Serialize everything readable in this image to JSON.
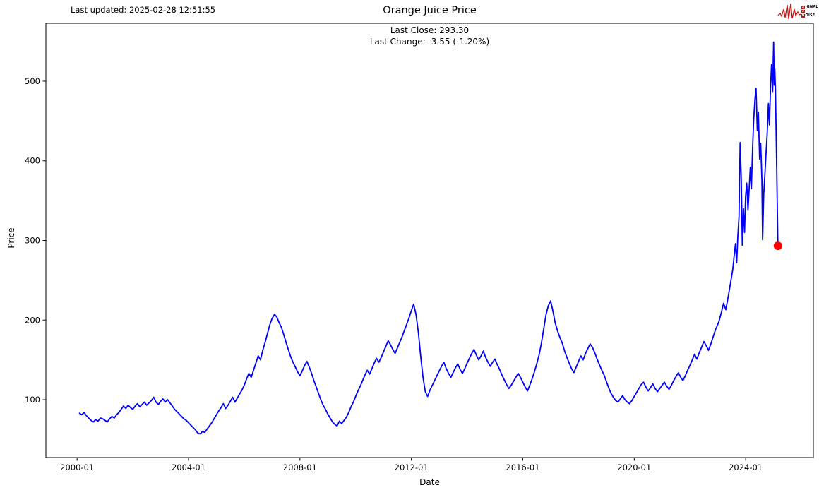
{
  "header": {
    "last_updated": "Last updated: 2025-02-28 12:51:55",
    "logo": {
      "word1_first": "S",
      "word1_rest": "IGNAL",
      "word2_first": "2",
      "word3_first": "N",
      "word3_rest": "OISE",
      "accent_color": "#cc1111"
    }
  },
  "chart_data": {
    "type": "line",
    "title": "Orange Juice Price",
    "xlabel": "Date",
    "ylabel": "Price",
    "annotations": {
      "close_line": "Last Close: 293.30",
      "change_line": "Last Change: -3.55 (-1.20%)"
    },
    "last_close": 293.3,
    "last_change": -3.55,
    "last_change_pct": "-1.20%",
    "line_color": "#0000ff",
    "marker_color": "#ff0000",
    "axis_color": "#000000",
    "grid": false,
    "legend": false,
    "x_ticks": [
      "2000-01",
      "2004-01",
      "2008-01",
      "2012-01",
      "2016-01",
      "2020-01",
      "2024-01"
    ],
    "y_ticks": [
      100,
      200,
      300,
      400,
      500
    ],
    "xlim_years": [
      1998.88,
      2026.43
    ],
    "ylim": [
      27.3,
      572.7
    ],
    "monthly": {
      "2000": [
        83,
        81,
        84,
        80,
        77,
        74,
        72,
        75,
        73,
        77,
        76
      ],
      "2001": [
        74,
        72,
        76,
        79,
        77,
        81,
        84,
        88,
        92,
        89,
        93,
        90
      ],
      "2002": [
        88,
        92,
        95,
        91,
        94,
        97,
        93,
        96,
        99,
        103,
        97,
        94
      ],
      "2003": [
        98,
        101,
        97,
        100,
        96,
        92,
        88,
        85,
        82,
        79,
        76,
        74
      ],
      "2004": [
        71,
        68,
        65,
        62,
        58,
        57,
        60,
        59,
        63,
        67,
        71,
        76
      ],
      "2005": [
        81,
        86,
        90,
        95,
        89,
        93,
        98,
        103,
        97,
        102,
        107,
        112
      ],
      "2006": [
        118,
        126,
        133,
        128,
        137,
        146,
        155,
        150,
        162,
        172,
        183,
        194
      ],
      "2007": [
        202,
        207,
        204,
        197,
        191,
        182,
        172,
        163,
        154,
        147,
        141,
        135
      ],
      "2008": [
        130,
        136,
        143,
        148,
        141,
        133,
        124,
        116,
        108,
        100,
        93,
        88
      ],
      "2009": [
        82,
        77,
        72,
        69,
        67,
        73,
        70,
        74,
        78,
        84,
        91,
        97
      ],
      "2010": [
        104,
        111,
        117,
        124,
        131,
        137,
        132,
        139,
        146,
        152,
        147,
        153
      ],
      "2011": [
        160,
        167,
        174,
        169,
        163,
        158,
        165,
        172,
        179,
        187,
        195,
        203
      ],
      "2012": [
        212,
        220,
        207,
        185,
        155,
        128,
        110,
        104,
        112,
        118,
        124,
        130
      ],
      "2013": [
        136,
        142,
        147,
        139,
        133,
        128,
        134,
        140,
        145,
        138,
        133,
        139
      ],
      "2014": [
        146,
        152,
        158,
        163,
        156,
        150,
        155,
        161,
        153,
        147,
        142,
        147
      ],
      "2015": [
        151,
        144,
        138,
        131,
        125,
        119,
        114,
        118,
        123,
        128,
        133,
        128
      ],
      "2016": [
        122,
        116,
        111,
        118,
        126,
        135,
        145,
        156,
        171,
        189,
        207,
        218
      ],
      "2017": [
        224,
        211,
        196,
        186,
        178,
        171,
        161,
        153,
        146,
        139,
        134,
        141
      ],
      "2018": [
        148,
        155,
        150,
        158,
        164,
        170,
        166,
        159,
        151,
        144,
        137,
        131
      ],
      "2019": [
        123,
        115,
        108,
        103,
        99,
        97,
        101,
        105,
        100,
        97,
        95,
        99
      ],
      "2020": [
        104,
        109,
        114,
        119,
        122,
        116,
        111,
        115,
        120,
        114,
        110,
        114
      ],
      "2021": [
        118,
        122,
        117,
        113,
        118,
        124,
        129,
        134,
        128,
        124,
        130,
        137
      ],
      "2022": [
        143,
        150,
        157,
        151,
        159,
        166,
        173,
        168,
        162,
        170,
        179,
        188
      ]
    },
    "tail": [
      [
        "2023-01-15",
        198
      ],
      [
        "2023-02-15",
        209
      ],
      [
        "2023-03-15",
        221
      ],
      [
        "2023-04-15",
        213
      ],
      [
        "2023-05-15",
        229
      ],
      [
        "2023-06-15",
        246
      ],
      [
        "2023-07-15",
        264
      ],
      [
        "2023-08-05",
        283
      ],
      [
        "2023-08-20",
        296
      ],
      [
        "2023-09-05",
        272
      ],
      [
        "2023-09-20",
        305
      ],
      [
        "2023-10-05",
        330
      ],
      [
        "2023-10-20",
        423
      ],
      [
        "2023-11-03",
        380
      ],
      [
        "2023-11-18",
        294
      ],
      [
        "2023-12-02",
        340
      ],
      [
        "2023-12-16",
        310
      ],
      [
        "2023-12-30",
        355
      ],
      [
        "2024-01-15",
        372
      ],
      [
        "2024-02-01",
        338
      ],
      [
        "2024-02-15",
        362
      ],
      [
        "2024-03-01",
        392
      ],
      [
        "2024-03-15",
        365
      ],
      [
        "2024-04-01",
        418
      ],
      [
        "2024-04-15",
        452
      ],
      [
        "2024-05-01",
        478
      ],
      [
        "2024-05-15",
        491
      ],
      [
        "2024-06-01",
        438
      ],
      [
        "2024-06-15",
        461
      ],
      [
        "2024-07-01",
        402
      ],
      [
        "2024-07-15",
        422
      ],
      [
        "2024-08-01",
        376
      ],
      [
        "2024-08-10",
        301
      ],
      [
        "2024-08-25",
        358
      ],
      [
        "2024-09-10",
        384
      ],
      [
        "2024-09-25",
        410
      ],
      [
        "2024-10-10",
        436
      ],
      [
        "2024-10-25",
        472
      ],
      [
        "2024-11-08",
        445
      ],
      [
        "2024-11-22",
        492
      ],
      [
        "2024-12-06",
        521
      ],
      [
        "2024-12-20",
        487
      ],
      [
        "2025-01-02",
        549
      ],
      [
        "2025-01-10",
        495
      ],
      [
        "2025-01-18",
        515
      ],
      [
        "2025-01-26",
        490
      ],
      [
        "2025-02-28",
        293.3
      ]
    ]
  }
}
